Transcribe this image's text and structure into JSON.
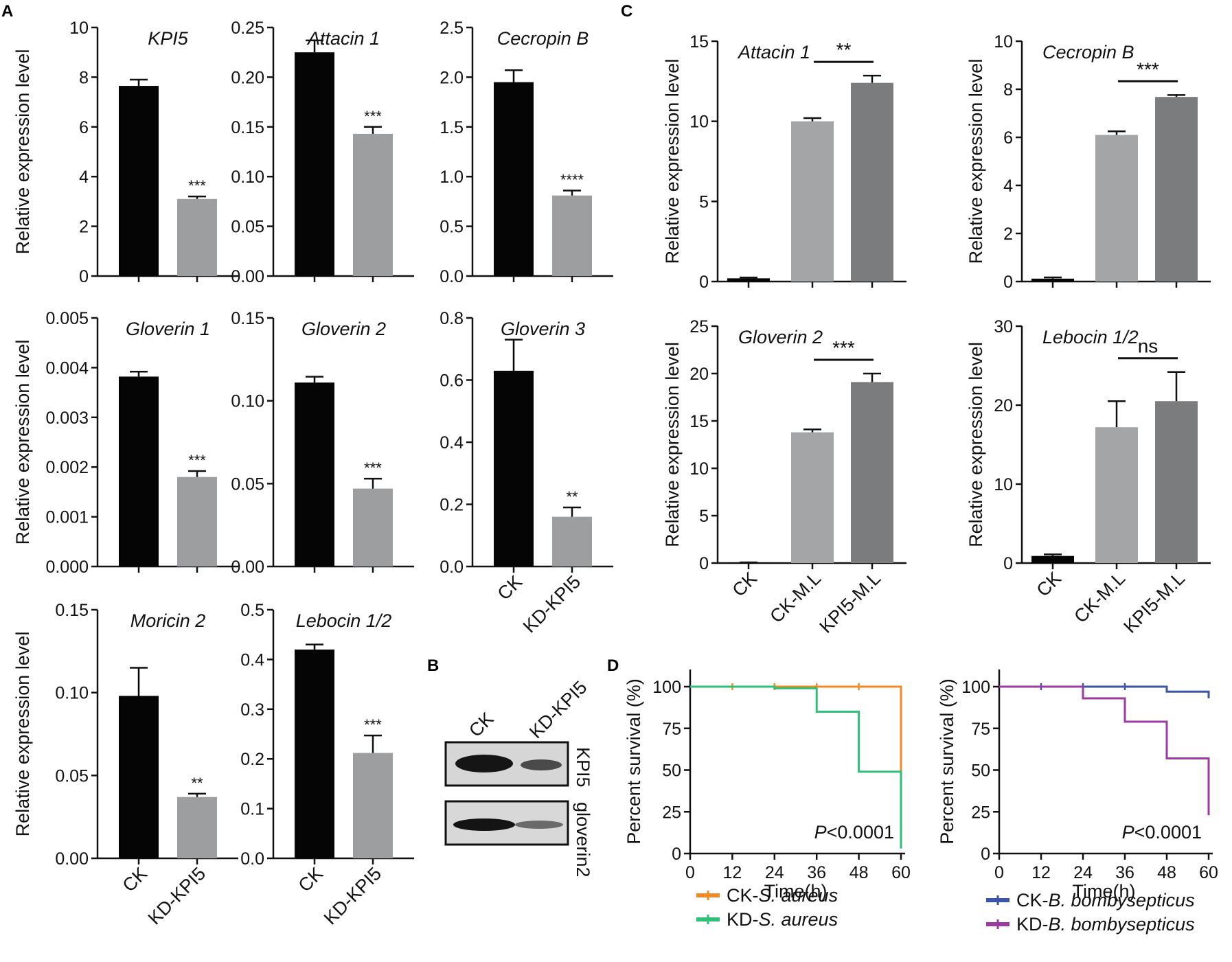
{
  "panels": {
    "A": "A",
    "B": "B",
    "C": "C",
    "D": "D"
  },
  "chart_data": [
    {
      "id": "A1",
      "type": "bar",
      "title": "KPI5",
      "ylabel": "Relative expression level",
      "categories": [
        "CK",
        "KD-KPI5"
      ],
      "values": [
        7.65,
        3.1
      ],
      "errors": [
        0.25,
        0.1
      ],
      "colors": [
        "#050505",
        "#9c9ea0"
      ],
      "ylim": [
        0,
        10
      ],
      "yticks": [
        "0",
        "2",
        "4",
        "6",
        "8",
        "10"
      ],
      "annotations": [
        "",
        "***"
      ]
    },
    {
      "id": "A2",
      "type": "bar",
      "title": "Attacin 1",
      "ylabel": "",
      "categories": [
        "CK",
        "KD-KPI5"
      ],
      "values": [
        0.225,
        0.143
      ],
      "errors": [
        0.012,
        0.007
      ],
      "colors": [
        "#050505",
        "#9c9ea0"
      ],
      "ylim": [
        0,
        0.25
      ],
      "yticks": [
        "0.00",
        "0.05",
        "0.10",
        "0.15",
        "0.20",
        "0.25"
      ],
      "annotations": [
        "",
        "***"
      ]
    },
    {
      "id": "A3",
      "type": "bar",
      "title": "Cecropin B",
      "ylabel": "",
      "categories": [
        "CK",
        "KD-KPI5"
      ],
      "values": [
        1.95,
        0.81
      ],
      "errors": [
        0.12,
        0.05
      ],
      "colors": [
        "#050505",
        "#9c9ea0"
      ],
      "ylim": [
        0,
        2.5
      ],
      "yticks": [
        "0.0",
        "0.5",
        "1.0",
        "1.5",
        "2.0",
        "2.5"
      ],
      "annotations": [
        "",
        "****"
      ]
    },
    {
      "id": "A4",
      "type": "bar",
      "title": "Gloverin 1",
      "ylabel": "Relative expression level",
      "categories": [
        "CK",
        "KD-KPI5"
      ],
      "values": [
        0.00382,
        0.0018
      ],
      "errors": [
        0.0001,
        0.00012
      ],
      "colors": [
        "#050505",
        "#9c9ea0"
      ],
      "ylim": [
        0,
        0.005
      ],
      "yticks": [
        "0.000",
        "0.001",
        "0.002",
        "0.003",
        "0.004",
        "0.005"
      ],
      "annotations": [
        "",
        "***"
      ]
    },
    {
      "id": "A5",
      "type": "bar",
      "title": "Gloverin 2",
      "ylabel": "",
      "categories": [
        "CK",
        "KD-KPI5"
      ],
      "values": [
        0.111,
        0.047
      ],
      "errors": [
        0.0035,
        0.006
      ],
      "colors": [
        "#050505",
        "#9c9ea0"
      ],
      "ylim": [
        0,
        0.15
      ],
      "yticks": [
        "0.00",
        "0.05",
        "0.10",
        "0.15"
      ],
      "annotations": [
        "",
        "***"
      ]
    },
    {
      "id": "A6",
      "type": "bar",
      "title": "Gloverin 3",
      "ylabel": "",
      "categories": [
        "CK",
        "KD-KPI5"
      ],
      "values": [
        0.63,
        0.16
      ],
      "errors": [
        0.1,
        0.03
      ],
      "colors": [
        "#050505",
        "#9c9ea0"
      ],
      "ylim": [
        0,
        0.8
      ],
      "yticks": [
        "0.0",
        "0.2",
        "0.4",
        "0.6",
        "0.8"
      ],
      "annotations": [
        "",
        "**"
      ]
    },
    {
      "id": "A7",
      "type": "bar",
      "title": "Moricin 2",
      "ylabel": "Relative expression level",
      "categories": [
        "CK",
        "KD-KPI5"
      ],
      "values": [
        0.098,
        0.037
      ],
      "errors": [
        0.017,
        0.002
      ],
      "colors": [
        "#050505",
        "#9c9ea0"
      ],
      "ylim": [
        0,
        0.15
      ],
      "yticks": [
        "0.00",
        "0.05",
        "0.10",
        "0.15"
      ],
      "annotations": [
        "",
        "**"
      ]
    },
    {
      "id": "A8",
      "type": "bar",
      "title": "Lebocin 1/2",
      "ylabel": "",
      "categories": [
        "CK",
        "KD-KPI5"
      ],
      "values": [
        0.42,
        0.212
      ],
      "errors": [
        0.01,
        0.035
      ],
      "colors": [
        "#050505",
        "#9c9ea0"
      ],
      "ylim": [
        0,
        0.5
      ],
      "yticks": [
        "0.0",
        "0.1",
        "0.2",
        "0.3",
        "0.4",
        "0.5"
      ],
      "annotations": [
        "",
        "***"
      ]
    },
    {
      "id": "C1",
      "type": "bar",
      "title": "Attacin 1",
      "ylabel": "Relative expression level",
      "categories": [
        "CK",
        "CK-M.L",
        "KPI5-M.L"
      ],
      "values": [
        0.2,
        10.0,
        12.4
      ],
      "errors": [
        0.05,
        0.2,
        0.45
      ],
      "colors": [
        "#050505",
        "#a4a5a7",
        "#7b7c7e"
      ],
      "ylim": [
        0,
        15
      ],
      "yticks": [
        "0",
        "5",
        "10",
        "15"
      ],
      "sig": "**"
    },
    {
      "id": "C2",
      "type": "bar",
      "title": "Cecropin B",
      "ylabel": "Relative expression level",
      "categories": [
        "CK",
        "CK-M.L",
        "KPI5-M.L"
      ],
      "values": [
        0.12,
        6.1,
        7.68
      ],
      "errors": [
        0.05,
        0.15,
        0.08
      ],
      "colors": [
        "#050505",
        "#a4a5a7",
        "#7b7c7e"
      ],
      "ylim": [
        0,
        10
      ],
      "yticks": [
        "0",
        "2",
        "4",
        "6",
        "8",
        "10"
      ],
      "sig": "***"
    },
    {
      "id": "C3",
      "type": "bar",
      "title": "Gloverin 2",
      "ylabel": "Relative expression level",
      "categories": [
        "CK",
        "CK-M.L",
        "KPI5-M.L"
      ],
      "values": [
        0.05,
        13.8,
        19.1
      ],
      "errors": [
        0.02,
        0.3,
        0.9
      ],
      "colors": [
        "#050505",
        "#a4a5a7",
        "#7b7c7e"
      ],
      "ylim": [
        0,
        25
      ],
      "yticks": [
        "0",
        "5",
        "10",
        "15",
        "20",
        "25"
      ],
      "sig": "***"
    },
    {
      "id": "C4",
      "type": "bar",
      "title": "Lebocin 1/2",
      "ylabel": "Relative expression level",
      "categories": [
        "CK",
        "CK-M.L",
        "KPI5-M.L"
      ],
      "values": [
        0.9,
        17.2,
        20.5
      ],
      "errors": [
        0.2,
        3.3,
        3.7
      ],
      "colors": [
        "#050505",
        "#a4a5a7",
        "#7b7c7e"
      ],
      "ylim": [
        0,
        30
      ],
      "yticks": [
        "0",
        "10",
        "20",
        "30"
      ],
      "sig": "ns"
    },
    {
      "id": "D1",
      "type": "line",
      "ylabel": "Percent survival (%)",
      "xlabel": "Time(h)",
      "xticks": [
        "0",
        "12",
        "24",
        "36",
        "48",
        "60"
      ],
      "yticks": [
        "0",
        "25",
        "50",
        "75",
        "100"
      ],
      "xlim": [
        0,
        60
      ],
      "ylim": [
        0,
        100
      ],
      "pvalue_italic": "P",
      "pvalue_rest": "<0.0001",
      "series": [
        {
          "name_prefix": "CK-",
          "name_italic": "S. aureus",
          "color": "#f08a24",
          "x": [
            0,
            60,
            60
          ],
          "y": [
            100,
            100,
            20
          ],
          "censor": [
            12,
            24,
            36,
            48
          ]
        },
        {
          "name_prefix": "KD-",
          "name_italic": "S. aureus",
          "color": "#2fbf78",
          "x": [
            0,
            24,
            24,
            36,
            36,
            48,
            48,
            60,
            60
          ],
          "y": [
            100,
            100,
            99,
            99,
            85,
            85,
            49,
            49,
            3
          ],
          "censor": []
        }
      ]
    },
    {
      "id": "D2",
      "type": "line",
      "ylabel": "Percent survival (%)",
      "xlabel": "Time(h)",
      "xticks": [
        "0",
        "12",
        "24",
        "36",
        "48",
        "60"
      ],
      "yticks": [
        "0",
        "25",
        "50",
        "75",
        "100"
      ],
      "xlim": [
        0,
        60
      ],
      "ylim": [
        0,
        100
      ],
      "pvalue_italic": "P",
      "pvalue_rest": "<0.0001",
      "series": [
        {
          "name_prefix": "CK-",
          "name_italic": "B. bombysepticus",
          "color": "#3b54a6",
          "x": [
            0,
            48,
            48,
            60,
            60
          ],
          "y": [
            100,
            100,
            97,
            97,
            93
          ],
          "censor": [
            12,
            24,
            36
          ]
        },
        {
          "name_prefix": "KD-",
          "name_italic": "B. bombysepticus",
          "color": "#9b3aa1",
          "x": [
            0,
            24,
            24,
            36,
            36,
            48,
            48,
            60,
            60
          ],
          "y": [
            100,
            100,
            93,
            93,
            79,
            79,
            57,
            57,
            23
          ],
          "censor": []
        }
      ]
    }
  ],
  "blot": {
    "lane_labels": [
      "CK",
      "KD-KPI5"
    ],
    "band_labels": [
      "KPI5",
      "gloverin2"
    ]
  }
}
